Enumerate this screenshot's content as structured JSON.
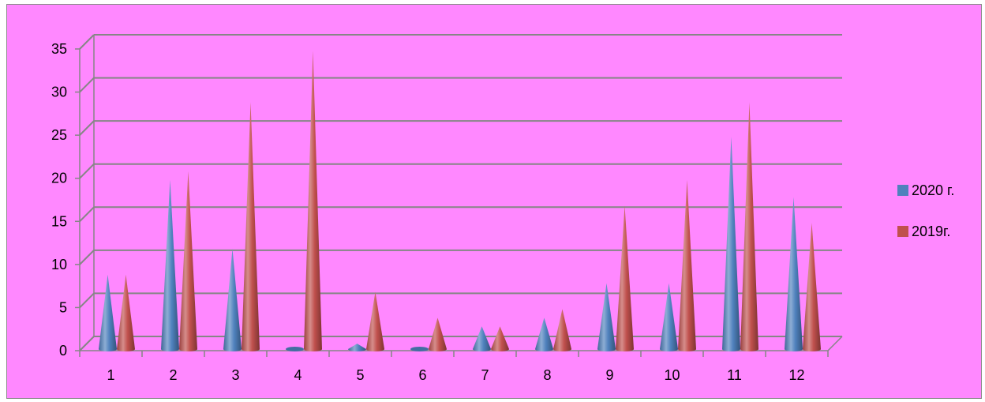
{
  "chart_data": {
    "type": "bar",
    "bar_shape": "cone",
    "view": "3d",
    "title": "",
    "xlabel": "",
    "ylabel": "",
    "categories": [
      "1",
      "2",
      "3",
      "4",
      "5",
      "6",
      "7",
      "8",
      "9",
      "10",
      "11",
      "12"
    ],
    "series": [
      {
        "name": "2020 г.",
        "color": "#4f81bd",
        "values": [
          9,
          20,
          12,
          0,
          1,
          0,
          3,
          4,
          8,
          8,
          25,
          18
        ]
      },
      {
        "name": "2019г.",
        "color": "#c0504d",
        "values": [
          9,
          21,
          29,
          35,
          7,
          4,
          3,
          5,
          17,
          20,
          29,
          15
        ]
      }
    ],
    "ylim": [
      0,
      35
    ],
    "yticks": [
      0,
      5,
      10,
      15,
      20,
      25,
      30,
      35
    ],
    "grid": true,
    "legend": "right",
    "background": "#ff88ff"
  }
}
